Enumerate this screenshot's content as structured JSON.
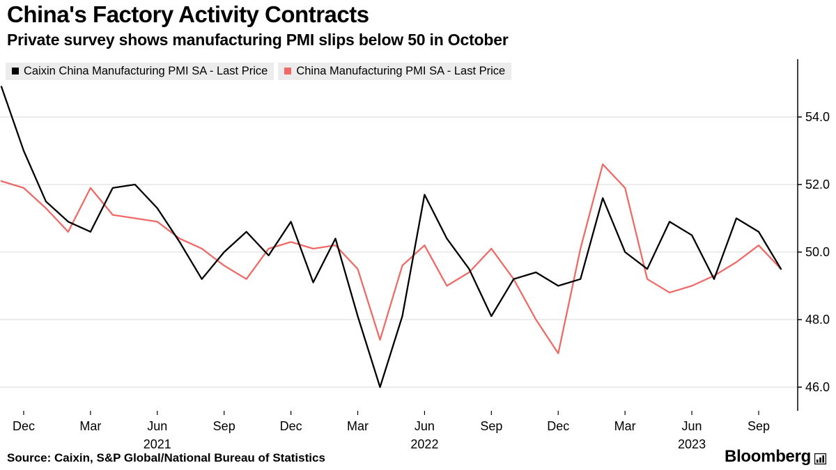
{
  "header": {
    "title": "China's Factory Activity Contracts",
    "subtitle": "Private survey shows manufacturing PMI slips below 50 in October"
  },
  "legend": [
    {
      "label": "Caixin China Manufacturing PMI SA - Last Price",
      "color": "#000000"
    },
    {
      "label": "China Manufacturing PMI SA - Last Price",
      "color": "#ee6a66"
    }
  ],
  "footer": {
    "source": "Source: Caixin, S&P Global/National Bureau of Statistics",
    "brand": "Bloomberg"
  },
  "colors": {
    "grid": "#d8d8d8",
    "axis": "#000000",
    "legend_chip_bg": "#ececec",
    "series_black": "#000000",
    "series_red": "#ee6a66"
  },
  "chart_data": {
    "type": "line",
    "title": "China's Factory Activity Contracts",
    "subtitle": "Private survey shows manufacturing PMI slips below 50 in October",
    "xlabel": "",
    "ylabel": "",
    "x": [
      "Nov 2020",
      "Dec 2020",
      "Jan 2021",
      "Feb 2021",
      "Mar 2021",
      "Apr 2021",
      "May 2021",
      "Jun 2021",
      "Jul 2021",
      "Aug 2021",
      "Sep 2021",
      "Oct 2021",
      "Nov 2021",
      "Dec 2021",
      "Jan 2022",
      "Feb 2022",
      "Mar 2022",
      "Apr 2022",
      "May 2022",
      "Jun 2022",
      "Jul 2022",
      "Aug 2022",
      "Sep 2022",
      "Oct 2022",
      "Nov 2022",
      "Dec 2022",
      "Jan 2023",
      "Feb 2023",
      "Mar 2023",
      "Apr 2023",
      "May 2023",
      "Jun 2023",
      "Jul 2023",
      "Aug 2023",
      "Sep 2023",
      "Oct 2023"
    ],
    "series": [
      {
        "name": "Caixin China Manufacturing PMI SA - Last Price",
        "color": "#000000",
        "values": [
          54.9,
          53.0,
          51.5,
          50.9,
          50.6,
          51.9,
          52.0,
          51.3,
          50.3,
          49.2,
          50.0,
          50.6,
          49.9,
          50.9,
          49.1,
          50.4,
          48.1,
          46.0,
          48.1,
          51.7,
          50.4,
          49.5,
          48.1,
          49.2,
          49.4,
          49.0,
          49.2,
          51.6,
          50.0,
          49.5,
          50.9,
          50.5,
          49.2,
          51.0,
          50.6,
          49.5
        ]
      },
      {
        "name": "China Manufacturing PMI SA - Last Price",
        "color": "#ee6a66",
        "values": [
          52.1,
          51.9,
          51.3,
          50.6,
          51.9,
          51.1,
          51.0,
          50.9,
          50.4,
          50.1,
          49.6,
          49.2,
          50.1,
          50.3,
          50.1,
          50.2,
          49.5,
          47.4,
          49.6,
          50.2,
          49.0,
          49.4,
          50.1,
          49.2,
          48.0,
          47.0,
          50.1,
          52.6,
          51.9,
          49.2,
          48.8,
          49.0,
          49.3,
          49.7,
          50.2,
          49.5
        ]
      }
    ],
    "y_ticks": [
      46.0,
      48.0,
      50.0,
      52.0,
      54.0
    ],
    "y_tick_labels": [
      "46.0",
      "48.0",
      "50.0",
      "52.0",
      "54.0"
    ],
    "ylim": [
      45.3,
      55.7
    ],
    "x_ticks": [
      {
        "index": 1,
        "label": "Dec"
      },
      {
        "index": 4,
        "label": "Mar"
      },
      {
        "index": 7,
        "label": "Jun"
      },
      {
        "index": 10,
        "label": "Sep"
      },
      {
        "index": 13,
        "label": "Dec"
      },
      {
        "index": 16,
        "label": "Mar"
      },
      {
        "index": 19,
        "label": "Jun"
      },
      {
        "index": 22,
        "label": "Sep"
      },
      {
        "index": 25,
        "label": "Dec"
      },
      {
        "index": 28,
        "label": "Mar"
      },
      {
        "index": 31,
        "label": "Jun"
      },
      {
        "index": 34,
        "label": "Sep"
      }
    ],
    "year_labels": [
      {
        "index": 7,
        "label": "2021"
      },
      {
        "index": 19,
        "label": "2022"
      },
      {
        "index": 31,
        "label": "2023"
      }
    ],
    "grid": "horizontal",
    "legend_position": "top-left",
    "axis_side": "right"
  }
}
